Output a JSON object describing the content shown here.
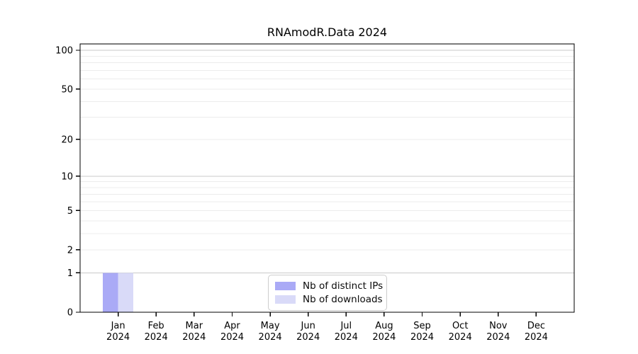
{
  "chart_data": {
    "type": "bar",
    "title": "RNAmodR.Data 2024",
    "categories": [
      "Jan",
      "Feb",
      "Mar",
      "Apr",
      "May",
      "Jun",
      "Jul",
      "Aug",
      "Sep",
      "Oct",
      "Nov",
      "Dec"
    ],
    "category_year_line": "2024",
    "series": [
      {
        "name": "Nb of distinct IPs",
        "color": "#aaaaf6",
        "values": [
          1,
          0,
          0,
          0,
          0,
          0,
          0,
          0,
          0,
          0,
          0,
          0
        ]
      },
      {
        "name": "Nb of downloads",
        "color": "#d9daf8",
        "values": [
          1,
          0,
          0,
          0,
          0,
          0,
          0,
          0,
          0,
          0,
          0,
          0
        ]
      }
    ],
    "xlabel": "",
    "ylabel": "",
    "y_scale": "log1p",
    "ylim": [
      0,
      112
    ],
    "y_tick_labels": [
      0,
      1,
      2,
      5,
      10,
      20,
      50,
      100
    ],
    "y_gridlines_major": [
      1,
      10,
      100
    ],
    "y_gridlines_minor": [
      2,
      3,
      4,
      5,
      6,
      7,
      8,
      9,
      20,
      30,
      40,
      50,
      60,
      70,
      80,
      90,
      110
    ],
    "grid": true,
    "legend_position": "lower center",
    "colors": {
      "grid_minor": "#ececec",
      "grid_major": "#c9c9c9",
      "axis": "#000000",
      "text": "#000000",
      "background": "#ffffff"
    }
  }
}
